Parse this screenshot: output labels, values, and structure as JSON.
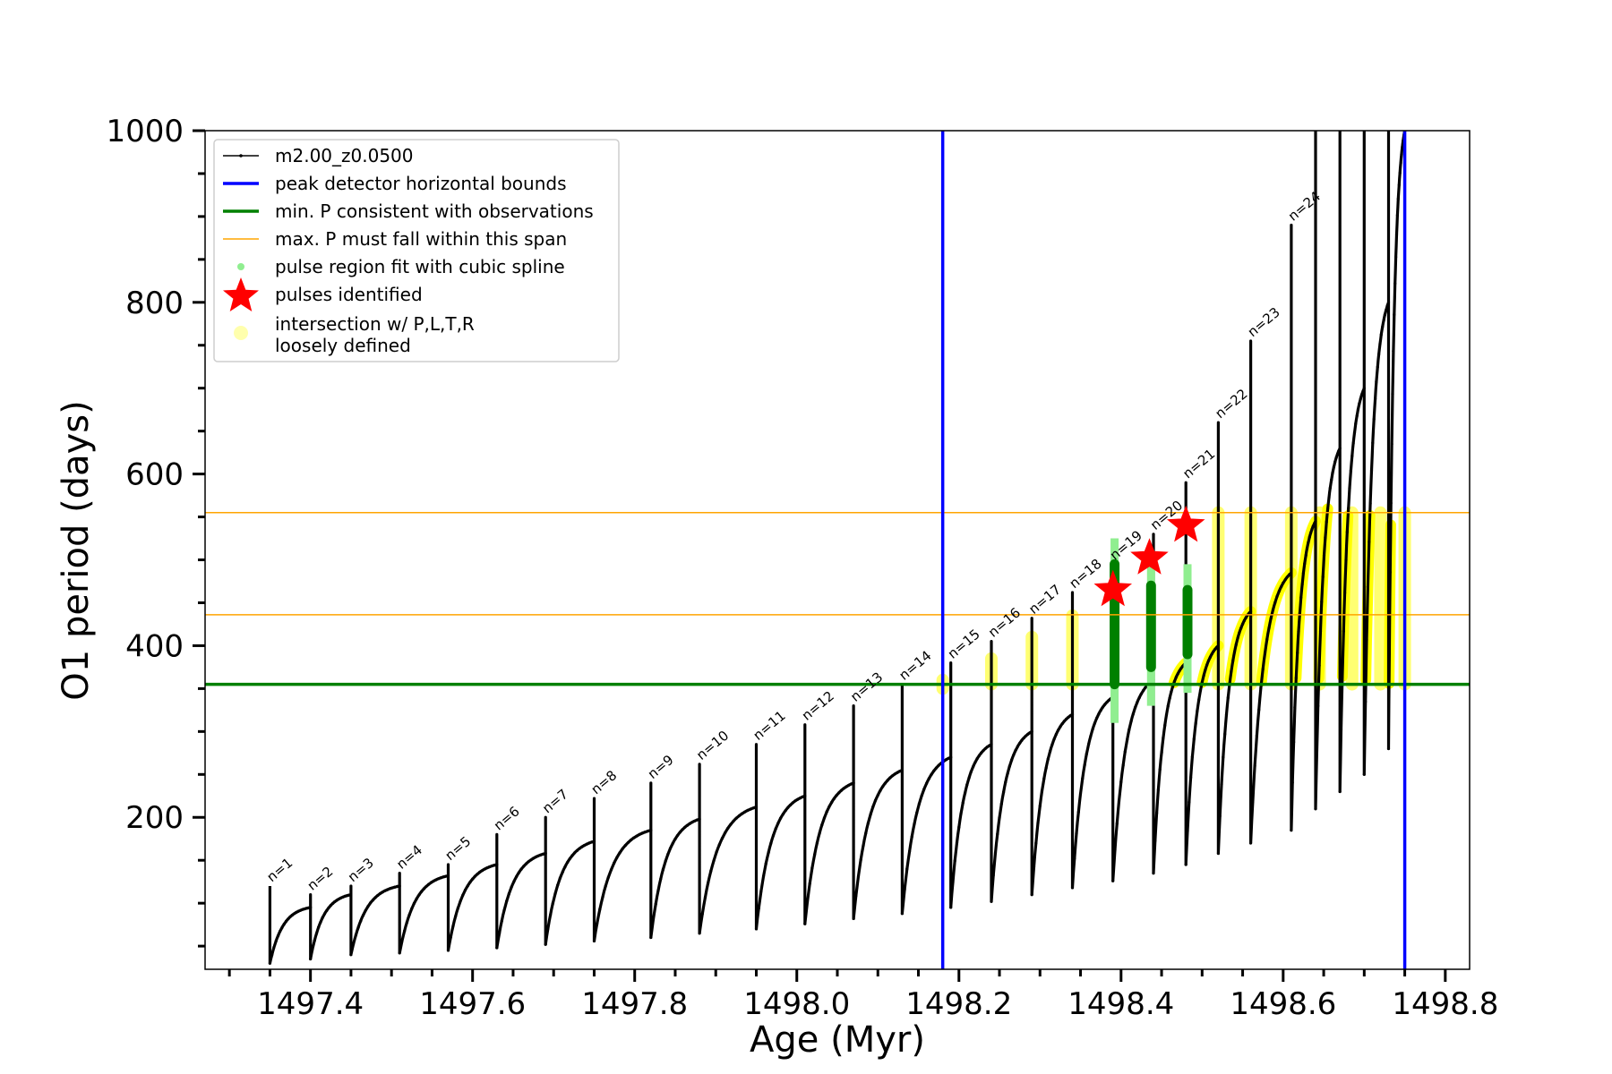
{
  "chart_data": {
    "type": "line",
    "xlabel": "Age (Myr)",
    "ylabel": "O1 period (days)",
    "xlim": [
      1497.27,
      1498.83
    ],
    "ylim": [
      23,
      1000
    ],
    "xticks": [
      1497.4,
      1497.6,
      1497.8,
      1498.0,
      1498.2,
      1498.4,
      1498.6,
      1498.8
    ],
    "xtick_labels": [
      "1497.4",
      "1497.6",
      "1497.8",
      "1498.0",
      "1498.2",
      "1498.4",
      "1498.6",
      "1498.8"
    ],
    "yticks": [
      200,
      400,
      600,
      800,
      1000
    ],
    "ytick_labels": [
      "200",
      "400",
      "600",
      "800",
      "1000"
    ],
    "legend": {
      "position": "top-left",
      "entries": [
        {
          "label": "m2.00_z0.0500",
          "color": "#000000",
          "style": "line-marker"
        },
        {
          "label": "peak detector horizontal bounds",
          "color": "#0000ff",
          "style": "thick-line"
        },
        {
          "label": "min. P consistent with observations",
          "color": "#008000",
          "style": "thick-line"
        },
        {
          "label": "max. P must fall within this span",
          "color": "#ffa500",
          "style": "thin-line"
        },
        {
          "label": "pulse region fit with cubic spline",
          "color": "#90ee90",
          "style": "dot"
        },
        {
          "label": "pulses identified",
          "color": "#ff0000",
          "style": "star"
        },
        {
          "label": "intersection w/ P,L,T,R",
          "label2": "loosely defined",
          "color": "#ffff99",
          "style": "big-dot"
        }
      ]
    },
    "vertical_lines": [
      {
        "x": 1498.18,
        "color": "#0000ff",
        "name": "peak detector horizontal bounds"
      },
      {
        "x": 1498.75,
        "color": "#0000ff",
        "name": "peak detector horizontal bounds"
      }
    ],
    "horizontal_lines": [
      {
        "y": 355,
        "color": "#008000",
        "name": "min. P consistent with observations"
      },
      {
        "y": 555,
        "color": "#ffa500",
        "name": "max. P upper"
      },
      {
        "y": 436,
        "color": "#ffa500",
        "name": "max. P lower"
      }
    ],
    "pulses": [
      {
        "label": "n=1",
        "t0": 1497.35,
        "t1": 1497.4,
        "min": 30,
        "max": 95,
        "spike": 120
      },
      {
        "label": "n=2",
        "t0": 1497.4,
        "t1": 1497.45,
        "min": 35,
        "max": 110,
        "spike": 110
      },
      {
        "label": "n=3",
        "t0": 1497.45,
        "t1": 1497.51,
        "min": 40,
        "max": 120,
        "spike": 120
      },
      {
        "label": "n=4",
        "t0": 1497.51,
        "t1": 1497.57,
        "min": 42,
        "max": 132,
        "spike": 135
      },
      {
        "label": "n=5",
        "t0": 1497.57,
        "t1": 1497.63,
        "min": 45,
        "max": 145,
        "spike": 145
      },
      {
        "label": "n=6",
        "t0": 1497.63,
        "t1": 1497.69,
        "min": 48,
        "max": 158,
        "spike": 180
      },
      {
        "label": "n=7",
        "t0": 1497.69,
        "t1": 1497.75,
        "min": 52,
        "max": 172,
        "spike": 200
      },
      {
        "label": "n=8",
        "t0": 1497.75,
        "t1": 1497.82,
        "min": 56,
        "max": 185,
        "spike": 222
      },
      {
        "label": "n=9",
        "t0": 1497.82,
        "t1": 1497.88,
        "min": 60,
        "max": 198,
        "spike": 240
      },
      {
        "label": "n=10",
        "t0": 1497.88,
        "t1": 1497.95,
        "min": 65,
        "max": 212,
        "spike": 262
      },
      {
        "label": "n=11",
        "t0": 1497.95,
        "t1": 1498.01,
        "min": 70,
        "max": 225,
        "spike": 285
      },
      {
        "label": "n=12",
        "t0": 1498.01,
        "t1": 1498.07,
        "min": 76,
        "max": 240,
        "spike": 308
      },
      {
        "label": "n=13",
        "t0": 1498.07,
        "t1": 1498.13,
        "min": 82,
        "max": 255,
        "spike": 330
      },
      {
        "label": "n=14",
        "t0": 1498.13,
        "t1": 1498.19,
        "min": 88,
        "max": 270,
        "spike": 355
      },
      {
        "label": "n=15",
        "t0": 1498.19,
        "t1": 1498.24,
        "min": 95,
        "max": 285,
        "spike": 380
      },
      {
        "label": "n=16",
        "t0": 1498.24,
        "t1": 1498.29,
        "min": 102,
        "max": 300,
        "spike": 405
      },
      {
        "label": "n=17",
        "t0": 1498.29,
        "t1": 1498.34,
        "min": 110,
        "max": 320,
        "spike": 432
      },
      {
        "label": "n=18",
        "t0": 1498.34,
        "t1": 1498.39,
        "min": 118,
        "max": 340,
        "spike": 462
      },
      {
        "label": "n=19",
        "t0": 1498.39,
        "t1": 1498.44,
        "min": 126,
        "max": 360,
        "spike": 495
      },
      {
        "label": "n=20",
        "t0": 1498.44,
        "t1": 1498.48,
        "min": 135,
        "max": 380,
        "spike": 530
      },
      {
        "label": "n=21",
        "t0": 1498.48,
        "t1": 1498.52,
        "min": 145,
        "max": 400,
        "spike": 590
      },
      {
        "label": "n=22",
        "t0": 1498.52,
        "t1": 1498.56,
        "min": 158,
        "max": 440,
        "spike": 660
      },
      {
        "label": "n=23",
        "t0": 1498.56,
        "t1": 1498.61,
        "min": 170,
        "max": 485,
        "spike": 755
      },
      {
        "label": "n=24",
        "t0": 1498.61,
        "t1": 1498.64,
        "min": 185,
        "max": 545,
        "spike": 890
      },
      {
        "label": "",
        "t0": 1498.64,
        "t1": 1498.67,
        "min": 210,
        "max": 630,
        "spike": 1000
      },
      {
        "label": "",
        "t0": 1498.67,
        "t1": 1498.7,
        "min": 230,
        "max": 700,
        "spike": 1000
      },
      {
        "label": "",
        "t0": 1498.7,
        "t1": 1498.73,
        "min": 250,
        "max": 800,
        "spike": 1000
      },
      {
        "label": "",
        "t0": 1498.73,
        "t1": 1498.75,
        "min": 280,
        "max": 1000,
        "spike": 1000
      }
    ],
    "pulses_identified": [
      {
        "x": 1498.39,
        "y": 465
      },
      {
        "x": 1498.435,
        "y": 502
      },
      {
        "x": 1498.48,
        "y": 540
      }
    ],
    "spline_regions": [
      {
        "x": 1498.392,
        "y0": 310,
        "y1": 525
      },
      {
        "x": 1498.437,
        "y0": 330,
        "y1": 500
      },
      {
        "x": 1498.482,
        "y0": 345,
        "y1": 495
      }
    ],
    "intersection_regions": [
      {
        "x": 1498.18,
        "y0": 350,
        "y1": 360
      },
      {
        "x": 1498.24,
        "y0": 355,
        "y1": 385
      },
      {
        "x": 1498.29,
        "y0": 355,
        "y1": 410
      },
      {
        "x": 1498.34,
        "y0": 355,
        "y1": 435
      },
      {
        "x": 1498.52,
        "y0": 355,
        "y1": 555
      },
      {
        "x": 1498.56,
        "y0": 355,
        "y1": 555
      },
      {
        "x": 1498.61,
        "y0": 355,
        "y1": 555
      },
      {
        "x": 1498.645,
        "y0": 355,
        "y1": 555
      },
      {
        "x": 1498.685,
        "y0": 355,
        "y1": 555
      },
      {
        "x": 1498.72,
        "y0": 355,
        "y1": 555
      },
      {
        "x": 1498.75,
        "y0": 355,
        "y1": 555
      }
    ]
  }
}
